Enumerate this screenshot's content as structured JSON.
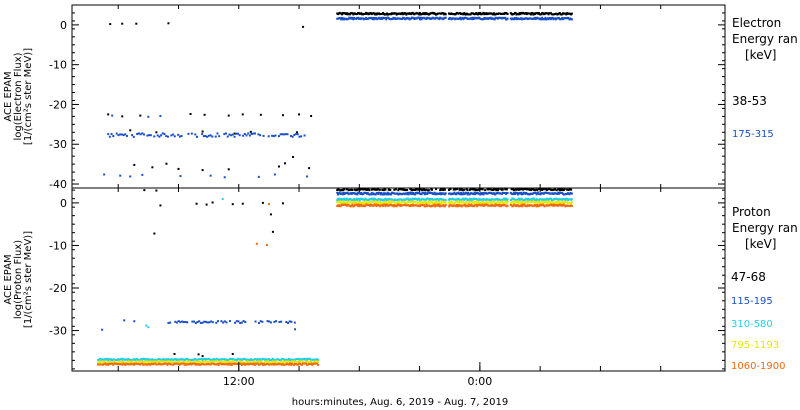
{
  "chart_data": [
    {
      "type": "scatter",
      "ylabel": [
        "ACE EPAM",
        "log(Electron Flux)",
        "[1/(cm²s ster MeV)]"
      ],
      "ylim": [
        -41,
        5
      ],
      "yticks": [
        0,
        -10,
        -20,
        -30,
        -40
      ],
      "legend_title": [
        "Electron",
        "Energy ran",
        "[keV]"
      ],
      "series": [
        {
          "name": "38-53",
          "color": "#000000",
          "sparse": [
            [
              5.6,
              0.2
            ],
            [
              6.2,
              0.3
            ],
            [
              6.9,
              0.3
            ],
            [
              8.5,
              0.4
            ],
            [
              15.2,
              -0.5
            ],
            [
              5.5,
              -22.5
            ],
            [
              6.2,
              -23
            ],
            [
              7.1,
              -22.8
            ],
            [
              9.6,
              -22.4
            ],
            [
              10.3,
              -22.6
            ],
            [
              11.5,
              -22.8
            ],
            [
              12.2,
              -22.5
            ],
            [
              13.1,
              -22.6
            ],
            [
              14.2,
              -22.7
            ],
            [
              15.0,
              -22.5
            ],
            [
              15.6,
              -22.9
            ],
            [
              6.6,
              -26.5
            ],
            [
              7.9,
              -27
            ],
            [
              10.2,
              -26.8
            ],
            [
              11.8,
              -27.3
            ],
            [
              12.6,
              -26.9
            ],
            [
              14.9,
              -27
            ],
            [
              6.8,
              -35.2
            ],
            [
              7.7,
              -35.8
            ],
            [
              8.4,
              -34.9
            ],
            [
              9.0,
              -36.2
            ],
            [
              10.2,
              -36.5
            ],
            [
              11.5,
              -36.3
            ],
            [
              14.0,
              -35.6
            ],
            [
              14.3,
              -34.8
            ],
            [
              14.7,
              -33.2
            ],
            [
              15.5,
              -36.0
            ]
          ],
          "band": [
            16.9,
            28.6,
            2.8
          ]
        },
        {
          "name": "175-315",
          "color": "#1a50c8",
          "sparse": [
            [
              5.7,
              -22.8
            ],
            [
              7.5,
              -23.1
            ],
            [
              8.1,
              -22.9
            ],
            [
              5.3,
              -37.6
            ],
            [
              6.1,
              -37.9
            ],
            [
              6.6,
              -38.1
            ],
            [
              7.2,
              -37.7
            ],
            [
              9.1,
              -38.0
            ],
            [
              10.6,
              -37.9
            ],
            [
              11.3,
              -38.3
            ],
            [
              13.0,
              -38.2
            ],
            [
              13.8,
              -37.6
            ],
            [
              15.4,
              -38.1
            ]
          ],
          "cluster": {
            "from": 5.5,
            "to": 15.4,
            "y": -27.7,
            "spread": 0.9
          },
          "band": [
            16.9,
            28.6,
            1.6
          ]
        }
      ]
    },
    {
      "type": "scatter",
      "ylabel": [
        "ACE EPAM",
        "log(Proton Flux)",
        "[1/(cm²s ster MeV)]"
      ],
      "ylim": [
        -39.5,
        3.5
      ],
      "yticks": [
        0,
        -10,
        -20,
        -30
      ],
      "legend_title": [
        "Proton",
        "Energy ran",
        "[keV]"
      ],
      "series": [
        {
          "name": "47-68",
          "color": "#000000",
          "sparse": [
            [
              7.3,
              3.0
            ],
            [
              7.6,
              3.3
            ],
            [
              7.9,
              2.9
            ],
            [
              8.1,
              -0.6
            ],
            [
              7.8,
              -7.2
            ],
            [
              9.9,
              -0.2
            ],
            [
              10.4,
              -0.4
            ],
            [
              10.7,
              0.1
            ],
            [
              11.7,
              -0.3
            ],
            [
              12.2,
              -0.2
            ],
            [
              13.2,
              0.0
            ],
            [
              13.6,
              -2.7
            ],
            [
              13.7,
              -6.8
            ],
            [
              14.2,
              -0.1
            ],
            [
              8.8,
              -35.5
            ],
            [
              10.0,
              -35.6
            ],
            [
              10.2,
              -36.0
            ],
            [
              11.7,
              -35.5
            ]
          ],
          "band": [
            16.9,
            28.6,
            3.2
          ]
        },
        {
          "name": "115-195",
          "color": "#1a50c8",
          "sparse": [
            [
              5.2,
              -29.8
            ],
            [
              6.3,
              -27.6
            ],
            [
              6.8,
              -27.8
            ],
            [
              14.8,
              -29.7
            ]
          ],
          "cluster": {
            "from": 8.5,
            "to": 14.8,
            "y": -28.0,
            "spread": 0.5
          },
          "band": [
            16.9,
            28.6,
            2.2
          ]
        },
        {
          "name": "310-580",
          "color": "#22d0e6",
          "sparse": [
            [
              7.4,
              -28.8
            ],
            [
              7.5,
              -29.2
            ],
            [
              11.2,
              0.9
            ]
          ],
          "low": [
            5.0,
            16.0,
            -36.8
          ],
          "band": [
            16.9,
            28.6,
            0.8
          ]
        },
        {
          "name": "795-1193",
          "color": "#e8e800",
          "sparse": [],
          "low": [
            5.0,
            16.0,
            -37.4
          ],
          "band": [
            16.9,
            28.6,
            0.1
          ]
        },
        {
          "name": "1060-1900",
          "color": "#f06a10",
          "sparse": [
            [
              12.9,
              -9.6
            ],
            [
              13.4,
              -9.9
            ],
            [
              13.5,
              -0.3
            ]
          ],
          "low": [
            5.0,
            16.0,
            -37.9
          ],
          "band": [
            16.9,
            28.6,
            -0.6
          ]
        }
      ]
    }
  ],
  "x_axis": {
    "range": [
      3.7,
      36.2
    ],
    "gaps": [
      [
        22.3,
        22.45
      ],
      [
        25.4,
        25.5
      ]
    ],
    "labeled_ticks": [
      {
        "value": 12,
        "label": "12:00"
      },
      {
        "value": 24,
        "label": "0:00"
      }
    ],
    "minor_ticks": [
      6,
      9,
      12,
      15,
      18,
      21,
      24,
      27,
      30,
      33
    ],
    "xlabel": "hours:minutes, Aug.  6, 2019 - Aug.  7, 2019"
  }
}
